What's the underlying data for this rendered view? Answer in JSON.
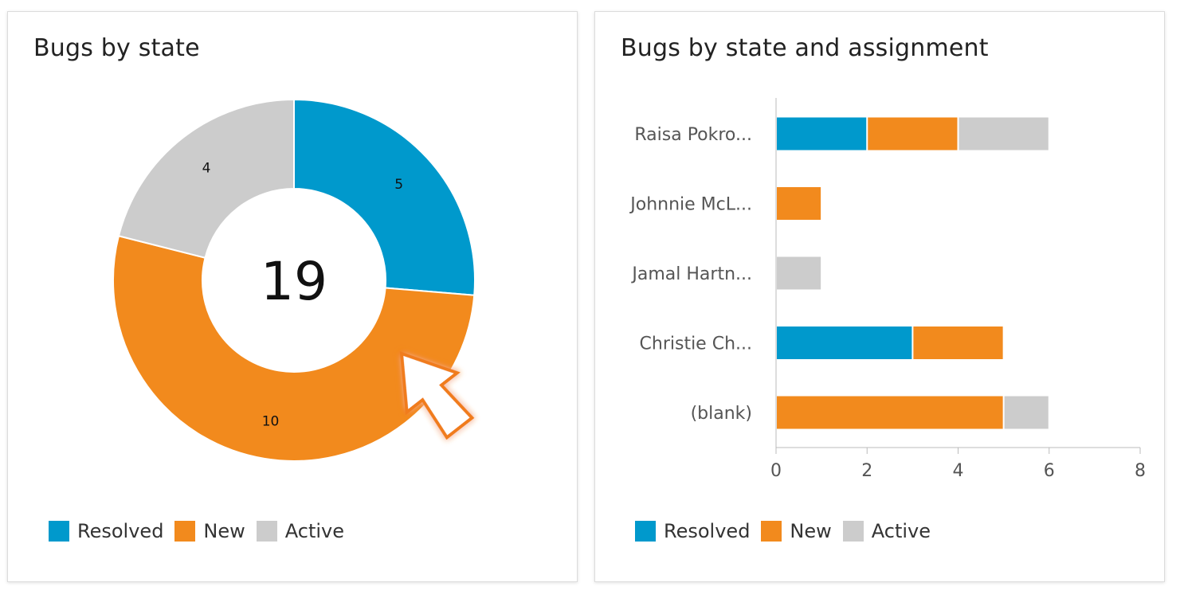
{
  "colors": {
    "resolved": "#0099cc",
    "new": "#f28a1d",
    "active": "#cccccc",
    "axis": "#bbbbbb"
  },
  "legend": {
    "resolved": "Resolved",
    "new": "New",
    "active": "Active"
  },
  "chart_data": [
    {
      "type": "pie",
      "title": "Bugs by state",
      "total": "19",
      "categories": [
        "Resolved",
        "New",
        "Active"
      ],
      "values": [
        5,
        10,
        4
      ],
      "value_labels": [
        "5",
        "10",
        "4"
      ],
      "donut": true,
      "legend_position": "bottom-left"
    },
    {
      "type": "bar",
      "orientation": "horizontal",
      "stacked": true,
      "title": "Bugs by state and assignment",
      "categories": [
        "Raisa Pokro...",
        "Johnnie McL...",
        "Jamal Hartn...",
        "Christie Ch...",
        "(blank)"
      ],
      "series": [
        {
          "name": "Resolved",
          "values": [
            2,
            0,
            0,
            3,
            0
          ]
        },
        {
          "name": "New",
          "values": [
            2,
            1,
            0,
            2,
            5
          ]
        },
        {
          "name": "Active",
          "values": [
            2,
            0,
            1,
            0,
            1
          ]
        }
      ],
      "xlim": [
        0,
        8
      ],
      "xticks": [
        "0",
        "2",
        "4",
        "6",
        "8"
      ],
      "legend_position": "bottom-left"
    }
  ]
}
